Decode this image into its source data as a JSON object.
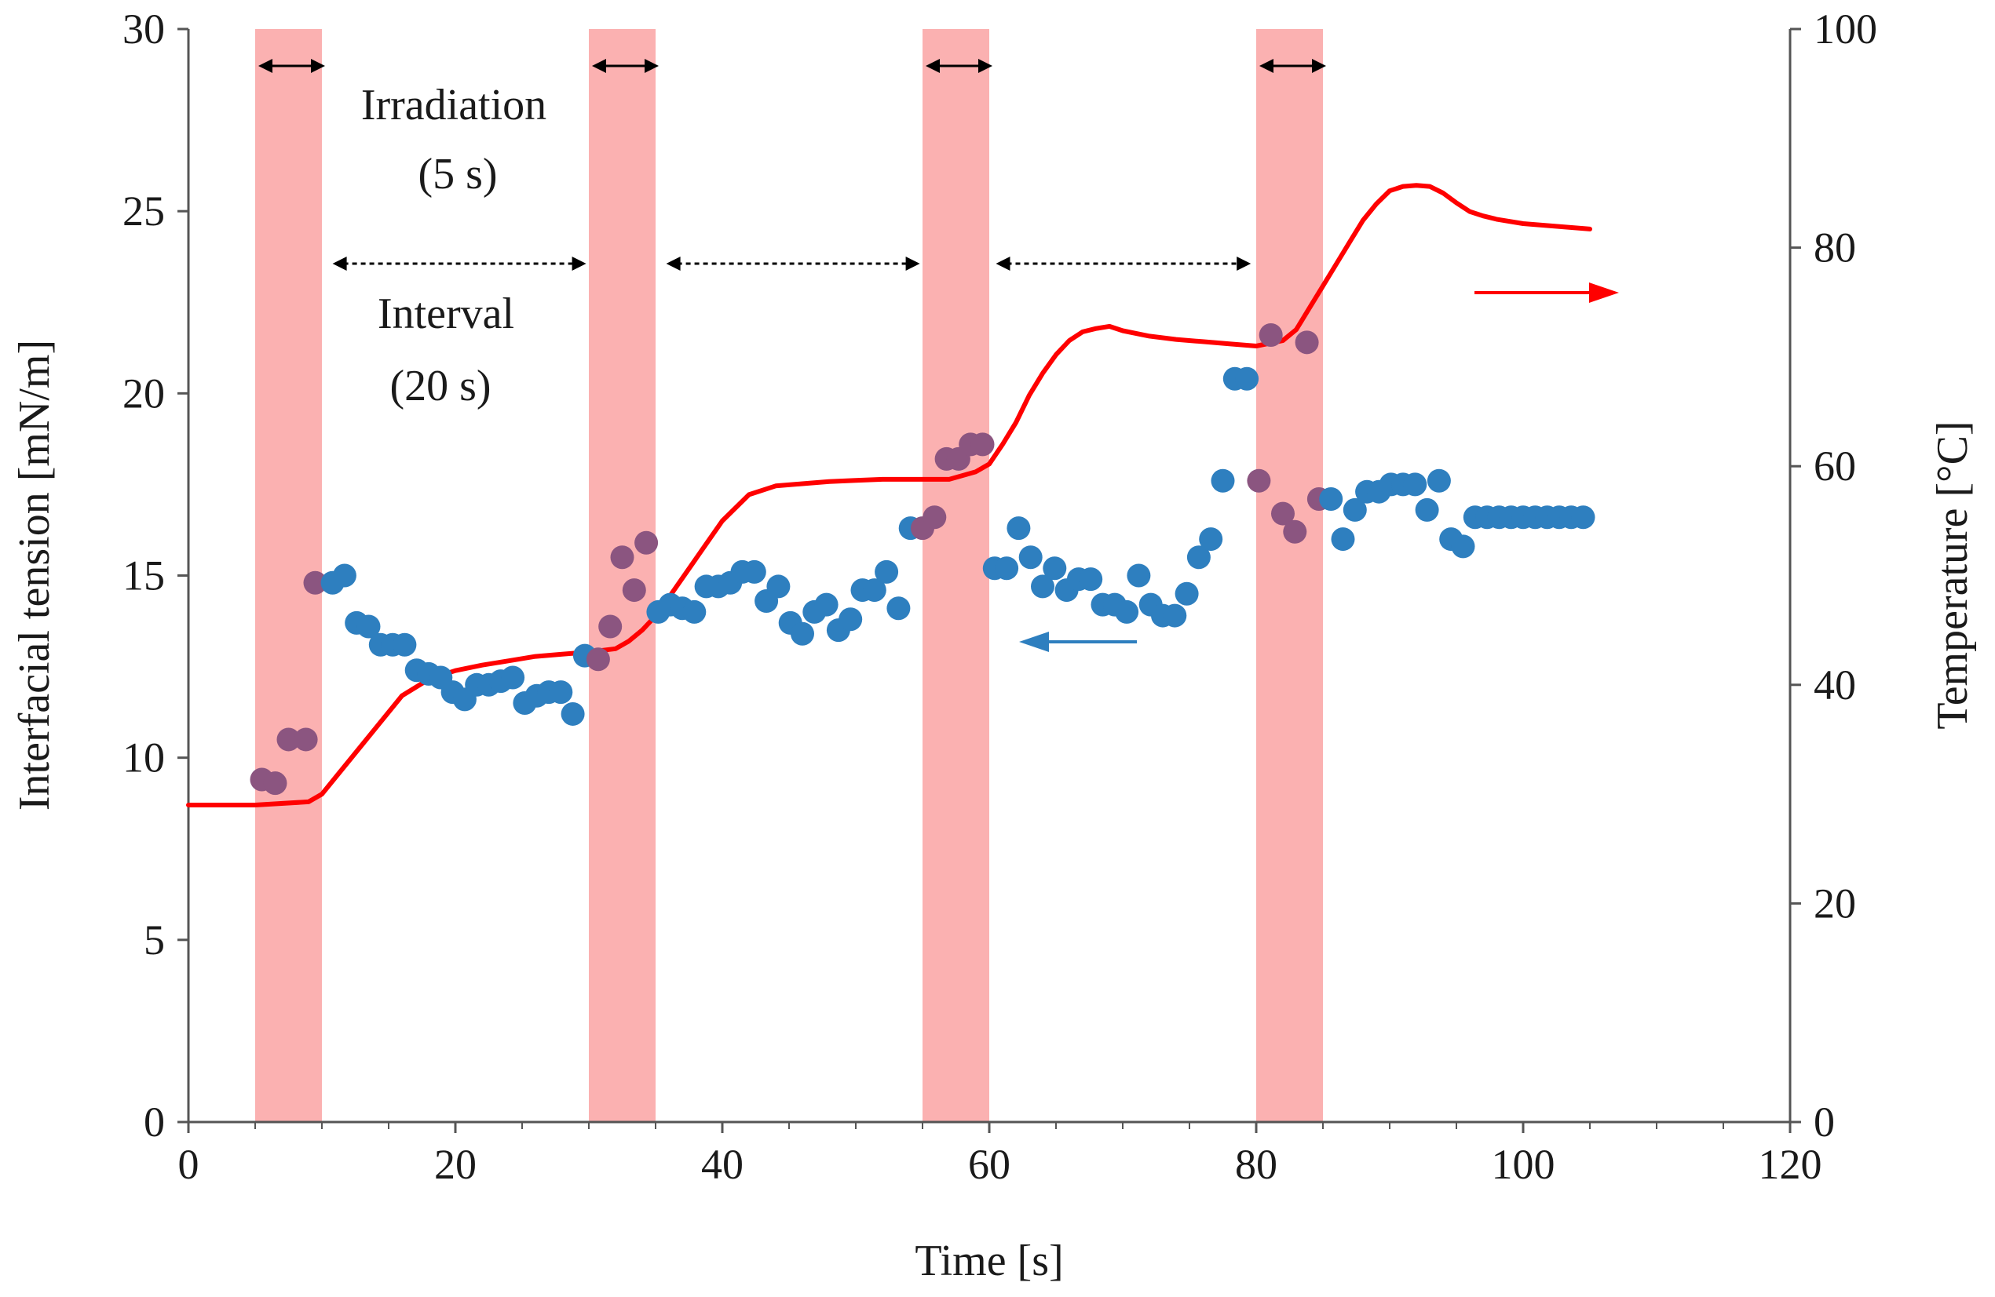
{
  "chart_data": {
    "type": "scatter",
    "title": "",
    "xlabel": "Time [s]",
    "ylabel": "Interfacial tension [mN/m]",
    "y2label": "Temperature [°C]",
    "xlim": [
      0,
      120
    ],
    "ylim": [
      0,
      30
    ],
    "y2lim": [
      0,
      100
    ],
    "xticks": [
      "0",
      "20",
      "40",
      "60",
      "80",
      "100",
      "120"
    ],
    "yticks": [
      "0",
      "5",
      "10",
      "15",
      "20",
      "25",
      "30"
    ],
    "y2ticks": [
      "0",
      "20",
      "40",
      "60",
      "80",
      "100"
    ],
    "irradiation_bands": [
      [
        5,
        10
      ],
      [
        30,
        35
      ],
      [
        55,
        60
      ],
      [
        80,
        85
      ]
    ],
    "annotations": {
      "irradiation_line1": "Irradiation",
      "irradiation_line2": "(5 s)",
      "interval_line1": "Interval",
      "interval_line2": "(20 s)"
    },
    "series": [
      {
        "name": "Interfacial tension",
        "axis": "left",
        "marker": "circle",
        "color": "#2e7fbf",
        "color_in_irradiation": "#8b5580",
        "x": [
          5.5,
          6.5,
          7.5,
          8.8,
          9.5,
          10.8,
          11.7,
          12.6,
          13.5,
          14.4,
          15.3,
          16.2,
          17.1,
          18.0,
          18.9,
          19.8,
          20.7,
          21.6,
          22.5,
          23.4,
          24.3,
          25.2,
          26.1,
          27.0,
          27.9,
          28.8,
          29.7,
          30.7,
          31.6,
          32.5,
          33.4,
          34.3,
          35.2,
          36.1,
          37.0,
          37.9,
          38.8,
          39.7,
          40.6,
          41.5,
          42.4,
          43.3,
          44.2,
          45.1,
          46.0,
          46.9,
          47.8,
          48.7,
          49.6,
          50.5,
          51.4,
          52.3,
          53.2,
          54.1,
          55.0,
          55.9,
          56.8,
          57.7,
          58.6,
          59.5,
          60.4,
          61.3,
          62.2,
          63.1,
          64.0,
          64.9,
          65.8,
          66.7,
          67.6,
          68.5,
          69.4,
          70.3,
          71.2,
          72.1,
          73.0,
          73.9,
          74.8,
          75.7,
          76.6,
          77.5,
          78.4,
          79.3,
          80.2,
          81.1,
          82.0,
          82.9,
          83.8,
          84.7,
          85.6,
          86.5,
          87.4,
          88.3,
          89.2,
          90.1,
          91.0,
          91.9,
          92.8,
          93.7,
          94.6,
          95.5,
          96.4,
          97.3,
          98.2,
          99.1,
          100.0,
          100.9,
          101.8,
          102.7,
          103.6,
          104.5
        ],
        "y": [
          9.4,
          9.3,
          10.5,
          10.5,
          14.8,
          14.8,
          15.0,
          13.7,
          13.6,
          13.1,
          13.1,
          13.1,
          12.4,
          12.3,
          12.2,
          11.8,
          11.6,
          12.0,
          12.0,
          12.1,
          12.2,
          11.5,
          11.7,
          11.8,
          11.8,
          11.2,
          12.8,
          12.7,
          13.6,
          15.5,
          14.6,
          15.9,
          14.0,
          14.2,
          14.1,
          14.0,
          14.7,
          14.7,
          14.8,
          15.1,
          15.1,
          14.3,
          14.7,
          13.7,
          13.4,
          14.0,
          14.2,
          13.5,
          13.8,
          14.6,
          14.6,
          15.1,
          14.1,
          16.3,
          16.3,
          16.6,
          18.2,
          18.2,
          18.6,
          18.6,
          15.2,
          15.2,
          16.3,
          15.5,
          14.7,
          15.2,
          14.6,
          14.9,
          14.9,
          14.2,
          14.2,
          14.0,
          15.0,
          14.2,
          13.9,
          13.9,
          14.5,
          15.5,
          16.0,
          17.6,
          20.4,
          20.4,
          17.6,
          21.6,
          16.7,
          16.2,
          21.4,
          17.1,
          17.1,
          16.0,
          16.8,
          17.3,
          17.3,
          17.5,
          17.5,
          17.5,
          16.8,
          17.6,
          16.0,
          15.8,
          16.6,
          16.6,
          16.6,
          16.6,
          16.6,
          16.6,
          16.6,
          16.6,
          16.6,
          16.6
        ]
      },
      {
        "name": "Temperature",
        "axis": "right",
        "marker": "line",
        "color": "#ff0000",
        "x": [
          0,
          5,
          9,
          10,
          11,
          12,
          14,
          16,
          18,
          20,
          22,
          24,
          26,
          28,
          30,
          32,
          33,
          34,
          35,
          36,
          38,
          40,
          42,
          44,
          46,
          48,
          50,
          52,
          55,
          57,
          59,
          60,
          61,
          62,
          63,
          64,
          65,
          66,
          67,
          68,
          69,
          70,
          72,
          74,
          76,
          78,
          80,
          82,
          83,
          84,
          85,
          86,
          87,
          88,
          89,
          90,
          91,
          92,
          93,
          94,
          95,
          96,
          97,
          98,
          100,
          102,
          104,
          105
        ],
        "y": [
          29,
          29,
          29.3,
          30,
          31.5,
          33,
          36,
          39,
          40.5,
          41.3,
          41.8,
          42.2,
          42.6,
          42.8,
          43,
          43.3,
          44,
          45,
          46.3,
          48,
          51.5,
          55,
          57.4,
          58.2,
          58.4,
          58.6,
          58.7,
          58.8,
          58.8,
          58.8,
          59.5,
          60.2,
          62,
          64,
          66.5,
          68.5,
          70.2,
          71.5,
          72.3,
          72.6,
          72.8,
          72.4,
          71.9,
          71.6,
          71.4,
          71.2,
          71.0,
          71.5,
          72.5,
          74.5,
          76.5,
          78.5,
          80.5,
          82.5,
          84,
          85.2,
          85.6,
          85.7,
          85.6,
          85.0,
          84.1,
          83.3,
          82.9,
          82.6,
          82.2,
          82.0,
          81.8,
          81.7
        ]
      }
    ]
  }
}
